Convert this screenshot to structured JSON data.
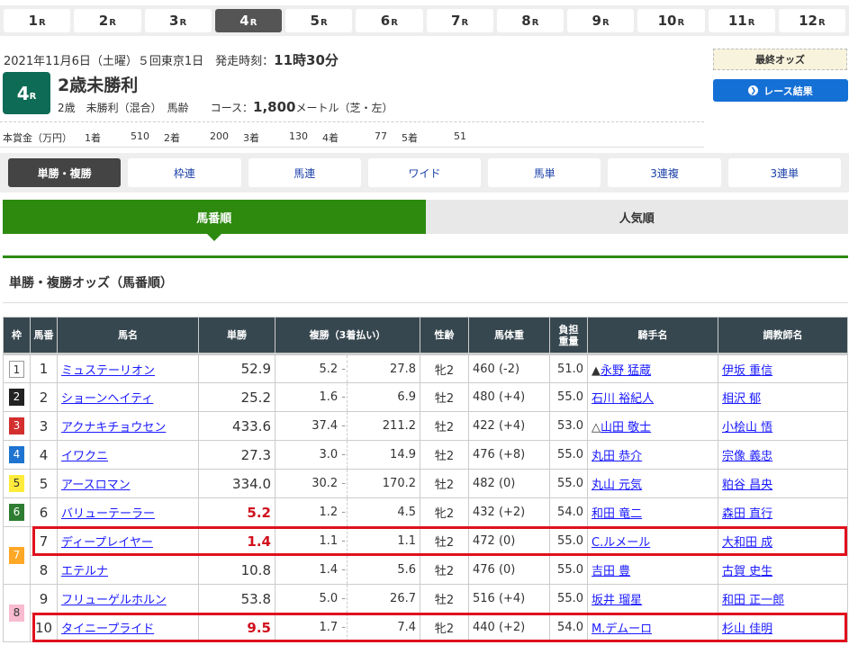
{
  "race_nav": [
    "1",
    "2",
    "3",
    "4",
    "5",
    "6",
    "7",
    "8",
    "9",
    "10",
    "11",
    "12"
  ],
  "race_nav_suffix": "R",
  "race_nav_active": "4",
  "header": {
    "date": "2021年11月6日（土曜）５回東京1日　発走時刻：",
    "post_time": "11時30分",
    "race_no": "4",
    "race_suffix": "R",
    "race_name": "2歳未勝利",
    "cond": "2歳　未勝利（混合）　馬齢　　コース：",
    "distance": "1,800",
    "dist_unit": "メートル（芝・左）"
  },
  "prize": {
    "label": "本賞金（万円）",
    "items": [
      {
        "pos": "1着",
        "val": "510"
      },
      {
        "pos": "2着",
        "val": "200"
      },
      {
        "pos": "3着",
        "val": "130"
      },
      {
        "pos": "4着",
        "val": "77"
      },
      {
        "pos": "5着",
        "val": "51"
      }
    ]
  },
  "final_odds": "最終オッズ",
  "result_button": "レース結果",
  "bet_tabs": [
    "単勝・複勝",
    "枠連",
    "馬連",
    "ワイド",
    "馬単",
    "3連複",
    "3連単"
  ],
  "order_tabs": [
    "馬番順",
    "人気順"
  ],
  "section_title": "単勝・複勝オッズ（馬番順）",
  "table": {
    "headers": [
      "枠",
      "馬番",
      "馬名",
      "単勝",
      "複勝（3着払い）",
      "性齢",
      "馬体重",
      "負担\n重量",
      "騎手名",
      "調教師名"
    ],
    "frame_colors": {
      "1": "#ffffff",
      "2": "#222222",
      "3": "#d32f2f",
      "4": "#1e74d0",
      "5": "#ffeb3b",
      "6": "#2e7d32",
      "7": "#ffa726",
      "8": "#f8bbd0"
    },
    "rows": [
      {
        "waku": "1",
        "num": "1",
        "name": "ミュステーリオン",
        "win": "52.9",
        "pl_lo": "5.2",
        "pl_hi": "27.8",
        "sex": "牝2",
        "weight": "460 (-2)",
        "load": "51.0",
        "jockey_mark": "▲",
        "jockey": "永野 猛蔵",
        "trainer": "伊坂 重信"
      },
      {
        "waku": "2",
        "num": "2",
        "name": "ショーンヘイティ",
        "win": "25.2",
        "pl_lo": "1.6",
        "pl_hi": "6.9",
        "sex": "牡2",
        "weight": "480 (+4)",
        "load": "55.0",
        "jockey_mark": "",
        "jockey": "石川 裕紀人",
        "trainer": "相沢 郁"
      },
      {
        "waku": "3",
        "num": "3",
        "name": "アクナキチョウセン",
        "win": "433.6",
        "pl_lo": "37.4",
        "pl_hi": "211.2",
        "sex": "牡2",
        "weight": "422 (+4)",
        "load": "53.0",
        "jockey_mark": "△",
        "jockey": "山田 敬士",
        "trainer": "小桧山 悟"
      },
      {
        "waku": "4",
        "num": "4",
        "name": "イワクニ",
        "win": "27.3",
        "pl_lo": "3.0",
        "pl_hi": "14.9",
        "sex": "牡2",
        "weight": "476 (+8)",
        "load": "55.0",
        "jockey_mark": "",
        "jockey": "丸田 恭介",
        "trainer": "宗像 義忠"
      },
      {
        "waku": "5",
        "num": "5",
        "name": "アースロマン",
        "win": "334.0",
        "pl_lo": "30.2",
        "pl_hi": "170.2",
        "sex": "牡2",
        "weight": "482 (0)",
        "load": "55.0",
        "jockey_mark": "",
        "jockey": "丸山 元気",
        "trainer": "粕谷 昌央"
      },
      {
        "waku": "6",
        "num": "6",
        "name": "バリューテーラー",
        "win": "5.2",
        "fav": true,
        "pl_lo": "1.2",
        "pl_hi": "4.5",
        "sex": "牝2",
        "weight": "432 (+2)",
        "load": "54.0",
        "jockey_mark": "",
        "jockey": "和田 竜二",
        "trainer": "森田 直行"
      },
      {
        "waku": "7",
        "num": "7",
        "name": "ディープレイヤー",
        "win": "1.4",
        "fav": true,
        "pl_lo": "1.1",
        "pl_hi": "1.1",
        "sex": "牡2",
        "weight": "472 (0)",
        "load": "55.0",
        "jockey_mark": "",
        "jockey": "C.ルメール",
        "trainer": "大和田 成",
        "highlight": true
      },
      {
        "waku": "7",
        "num": "8",
        "name": "エテルナ",
        "win": "10.8",
        "pl_lo": "1.4",
        "pl_hi": "5.6",
        "sex": "牡2",
        "weight": "476 (0)",
        "load": "55.0",
        "jockey_mark": "",
        "jockey": "吉田 豊",
        "trainer": "古賀 史生"
      },
      {
        "waku": "8",
        "num": "9",
        "name": "フリューゲルホルン",
        "win": "53.8",
        "pl_lo": "5.0",
        "pl_hi": "26.7",
        "sex": "牡2",
        "weight": "516 (+4)",
        "load": "55.0",
        "jockey_mark": "",
        "jockey": "坂井 瑠星",
        "trainer": "和田 正一郎"
      },
      {
        "waku": "8",
        "num": "10",
        "name": "タイニープライド",
        "win": "9.5",
        "fav": true,
        "pl_lo": "1.7",
        "pl_hi": "7.4",
        "sex": "牝2",
        "weight": "440 (+2)",
        "load": "54.0",
        "jockey_mark": "",
        "jockey": "M.デムーロ",
        "trainer": "杉山 佳明",
        "highlight": true
      }
    ]
  },
  "highlight_color": "#e0101e"
}
